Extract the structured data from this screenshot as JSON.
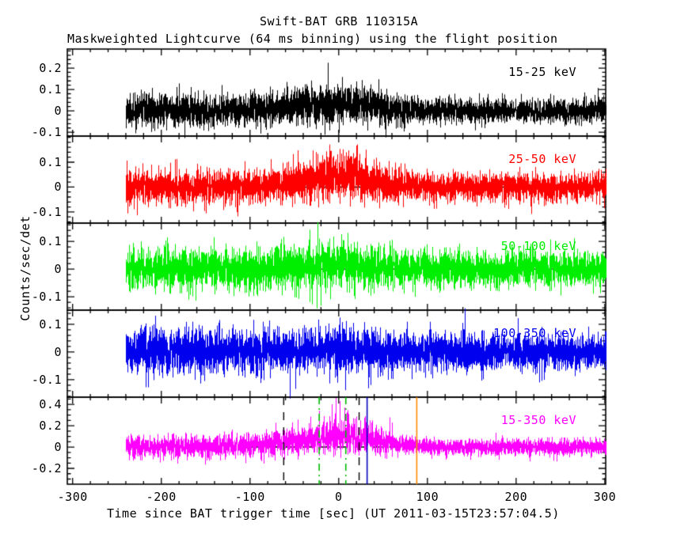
{
  "figure": {
    "title": "Swift-BAT GRB 110315A",
    "subtitle": "Maskweighted Lightcurve (64 ms binning) using the flight position",
    "xlabel": "Time since BAT trigger time [sec] (UT 2011-03-15T23:57:04.5)",
    "ylabel": "Counts/sec/det"
  },
  "chart_data": {
    "type": "line",
    "title": "Swift-BAT GRB 110315A",
    "subtitle": "Maskweighted Lightcurve (64 ms binning) using the flight position",
    "xlabel": "Time since BAT trigger time [sec] (UT 2011-03-15T23:57:04.5)",
    "ylabel": "Counts/sec/det",
    "bin_ms": 64,
    "trigger_utc": "2011-03-15T23:57:04.5",
    "xlim": [
      -306,
      301
    ],
    "xticks": [
      -300,
      -200,
      -100,
      0,
      100,
      200,
      300
    ],
    "x_minor_step": 20,
    "data_time_range": [
      -240,
      301
    ],
    "grid": false,
    "legend_position": "in-panel-right",
    "panels": [
      {
        "band": "15-25 keV",
        "color": "#000000",
        "ylim": [
          -0.118,
          0.289
        ],
        "yticks": [
          -0.1,
          0,
          0.1,
          0.2
        ],
        "y_minor_step": 0.02,
        "zero_dash": false,
        "seed": 11,
        "noise": {
          "sigma": 0.037,
          "sigma_late": 0.028,
          "late_after": 75,
          "peak_sigma_boost": 0.008,
          "mean_amp": 0.033,
          "mean_center": 15,
          "mean_wl": 70,
          "mean_wr": 32
        },
        "spikes": [
          [
            -12,
            0.225
          ]
        ],
        "vlines": []
      },
      {
        "band": "25-50 keV",
        "color": "#ff0000",
        "ylim": [
          -0.145,
          0.205
        ],
        "yticks": [
          -0.1,
          0,
          0.1
        ],
        "y_minor_step": 0.02,
        "zero_dash": true,
        "seed": 22,
        "noise": {
          "sigma": 0.034,
          "sigma_late": 0.028,
          "late_after": 60,
          "peak_sigma_boost": 0.013,
          "mean_amp": 0.045,
          "mean_center": 5,
          "mean_wl": 42,
          "mean_wr": 30
        },
        "spikes": [
          [
            -2,
            0.132
          ],
          [
            8,
            0.126
          ],
          [
            -150,
            -0.106
          ]
        ],
        "vlines": []
      },
      {
        "band": "50-100 keV",
        "color": "#00ee00",
        "ylim": [
          -0.148,
          0.166
        ],
        "yticks": [
          -0.1,
          0,
          0.1
        ],
        "y_minor_step": 0.02,
        "zero_dash": true,
        "seed": 33,
        "noise": {
          "sigma": 0.036,
          "sigma_late": 0.031,
          "late_after": 60,
          "peak_sigma_boost": 0.006,
          "mean_amp": 0.015,
          "mean_center": 0,
          "mean_wl": 40,
          "mean_wr": 40
        },
        "spikes": [
          [
            -25,
            -0.142
          ],
          [
            -20,
            -0.132
          ],
          [
            3,
            0.126
          ]
        ],
        "vlines": []
      },
      {
        "band": "100-350 keV",
        "color": "#0000ee",
        "ylim": [
          -0.163,
          0.151
        ],
        "yticks": [
          -0.1,
          0,
          0.1
        ],
        "y_minor_step": 0.02,
        "zero_dash": true,
        "seed": 44,
        "noise": {
          "sigma": 0.04,
          "sigma_late": 0.033,
          "late_after": 60,
          "peak_sigma_boost": 0.0,
          "mean_amp": 0.008,
          "mean_center": 0,
          "mean_wl": 40,
          "mean_wr": 40
        },
        "spikes": [
          [
            -55,
            -0.168
          ],
          [
            33,
            -0.131
          ]
        ],
        "vlines": []
      },
      {
        "band": "15-350 keV",
        "color": "#ff00ff",
        "ylim": [
          -0.348,
          0.467
        ],
        "yticks": [
          -0.2,
          0,
          0.2,
          0.4
        ],
        "y_minor_step": 0.05,
        "zero_dash": true,
        "seed": 55,
        "noise": {
          "sigma": 0.052,
          "sigma_late": 0.038,
          "late_after": 60,
          "peak_sigma_boost": 0.022,
          "mean_amp": 0.095,
          "mean_center": 0,
          "mean_wl": 52,
          "mean_wr": 40
        },
        "spikes": [
          [
            -22,
            0.34
          ],
          [
            -17,
            0.29
          ],
          [
            -8,
            0.4
          ],
          [
            -3,
            0.46
          ],
          [
            1,
            0.43
          ],
          [
            6,
            0.37
          ],
          [
            11,
            0.31
          ],
          [
            16,
            0.27
          ],
          [
            24,
            0.25
          ]
        ],
        "vlines": [
          {
            "t": -62,
            "color": "#000000",
            "style": "dashed"
          },
          {
            "t": 23,
            "color": "#000000",
            "style": "dashed"
          },
          {
            "t": -22,
            "color": "#00bb00",
            "style": "dashdot"
          },
          {
            "t": 8,
            "color": "#00bb00",
            "style": "dashdot"
          },
          {
            "t": 32,
            "color": "#0000bb",
            "style": "solid"
          },
          {
            "t": 88,
            "color": "#ff8800",
            "style": "solid"
          }
        ]
      }
    ]
  }
}
